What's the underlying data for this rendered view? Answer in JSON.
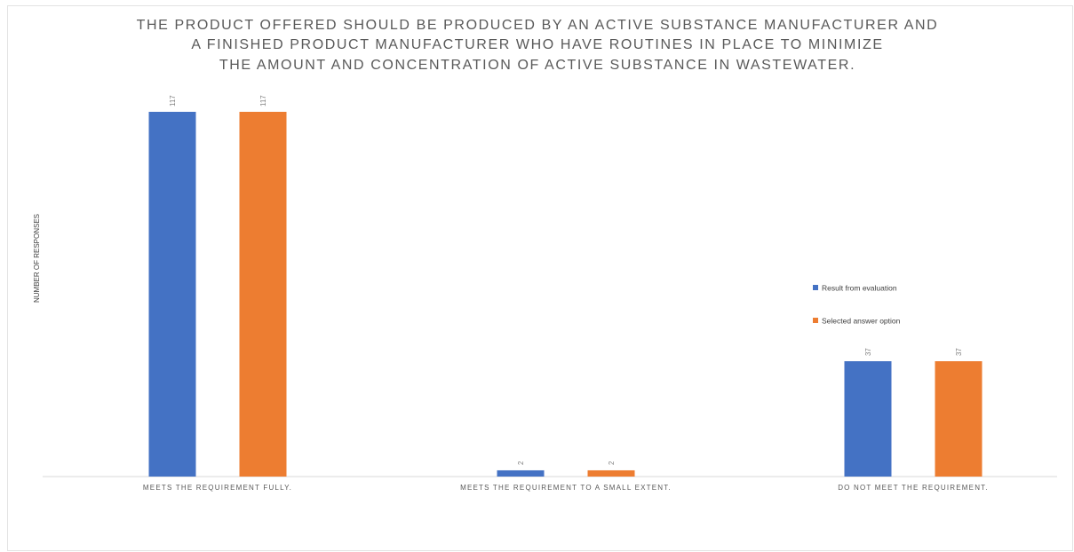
{
  "chart_data": {
    "type": "bar",
    "title_lines": [
      "THE PRODUCT OFFERED SHOULD BE PRODUCED BY AN ACTIVE SUBSTANCE MANUFACTURER AND",
      "A FINISHED PRODUCT MANUFACTURER WHO HAVE ROUTINES IN PLACE TO MINIMIZE",
      "THE AMOUNT AND CONCENTRATION OF ACTIVE SUBSTANCE IN WASTEWATER."
    ],
    "ylabel": "NUMBER OF RESPONSES",
    "xlabel": "",
    "categories": [
      "MEETS THE REQUIREMENT FULLY.",
      "MEETS THE REQUIREMENT TO A SMALL EXTENT.",
      "DO NOT MEET THE REQUIREMENT."
    ],
    "series": [
      {
        "name": "Result from evaluation",
        "color": "#4472c4",
        "values": [
          117,
          2,
          37
        ]
      },
      {
        "name": "Selected answer option",
        "color": "#ed7d31",
        "values": [
          117,
          2,
          37
        ]
      }
    ],
    "ylim": [
      0,
      117
    ],
    "grid": false,
    "legend_position": "right"
  }
}
